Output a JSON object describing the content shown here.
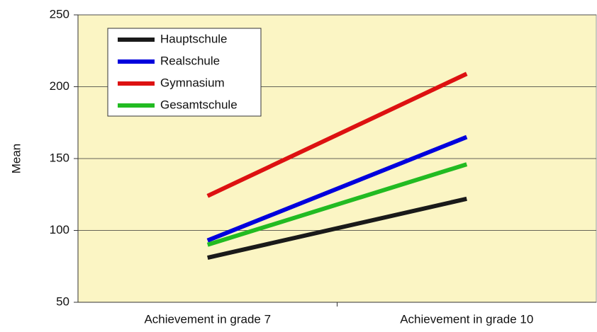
{
  "chart_data": {
    "type": "line",
    "y_label": "Mean",
    "categories": [
      "Achievement in grade 7",
      "Achievement in grade 10"
    ],
    "series": [
      {
        "name": "Hauptschule",
        "color": "#1a1a1a",
        "values": [
          81,
          122
        ]
      },
      {
        "name": "Realschule",
        "color": "#0000dd",
        "values": [
          93,
          165
        ]
      },
      {
        "name": "Gymnasium",
        "color": "#dd1111",
        "values": [
          124,
          209
        ]
      },
      {
        "name": "Gesamtschule",
        "color": "#22bb22",
        "values": [
          90,
          146
        ]
      }
    ],
    "ylim": [
      50,
      250
    ],
    "yticks": [
      50,
      100,
      150,
      200,
      250
    ],
    "grid": true,
    "legend": "upper left",
    "background": "#fbf5c4"
  }
}
